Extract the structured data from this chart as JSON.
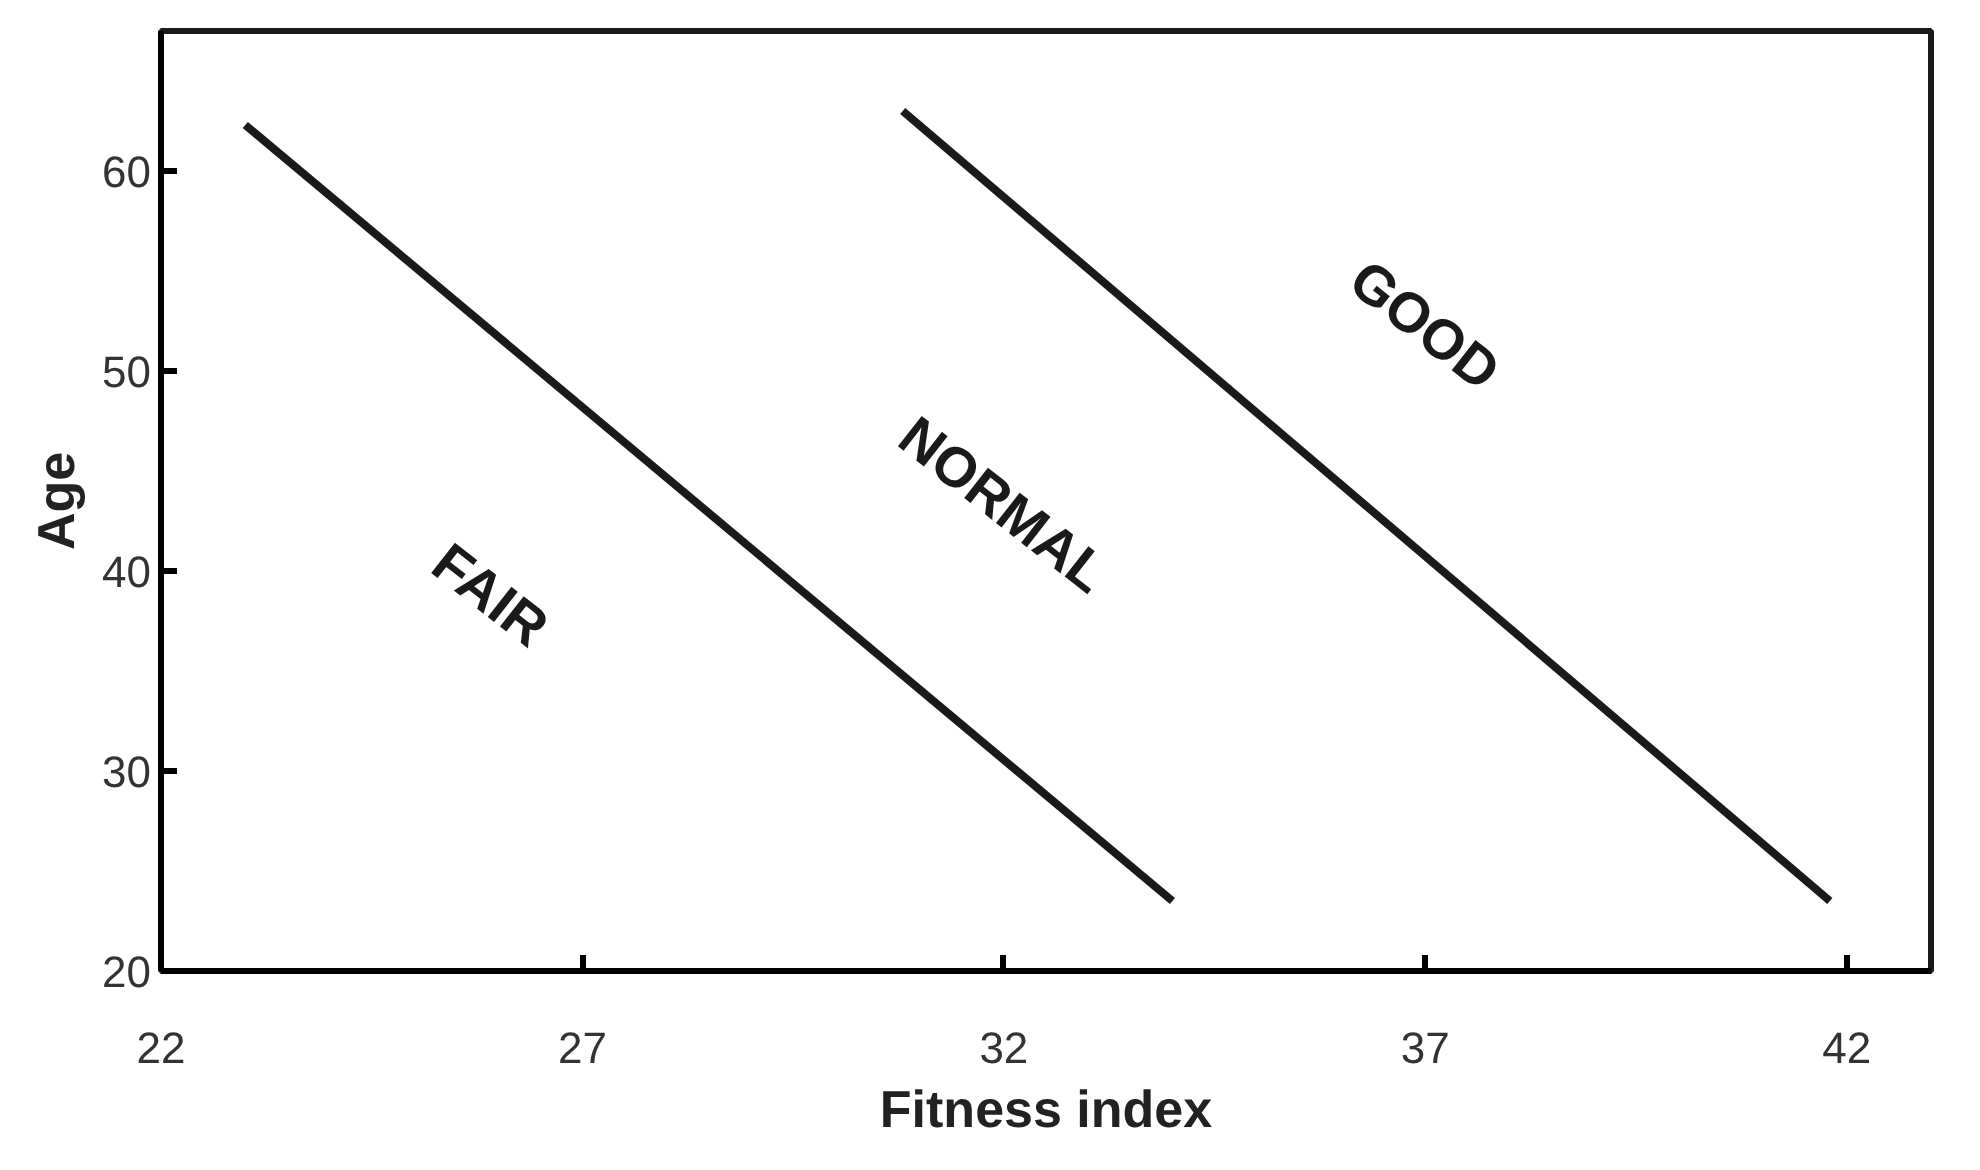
{
  "chart_data": {
    "type": "line",
    "xlabel": "Fitness index",
    "ylabel": "Age",
    "xlim": [
      22,
      43
    ],
    "ylim": [
      20,
      67
    ],
    "xticks": [
      22,
      27,
      32,
      37,
      42
    ],
    "yticks": [
      20,
      30,
      40,
      50,
      60
    ],
    "grid": false,
    "marker": "none",
    "line_style": "solid",
    "series": [
      {
        "color": "#1a1a1a",
        "x": [
          23,
          34
        ],
        "values": [
          62.3,
          23.5
        ]
      },
      {
        "color": "#1a1a1a",
        "x": [
          30.8,
          41.8
        ],
        "values": [
          63,
          23.5
        ]
      }
    ],
    "annotations": [
      "FAIR",
      "NORMAL",
      "GOOD"
    ]
  }
}
